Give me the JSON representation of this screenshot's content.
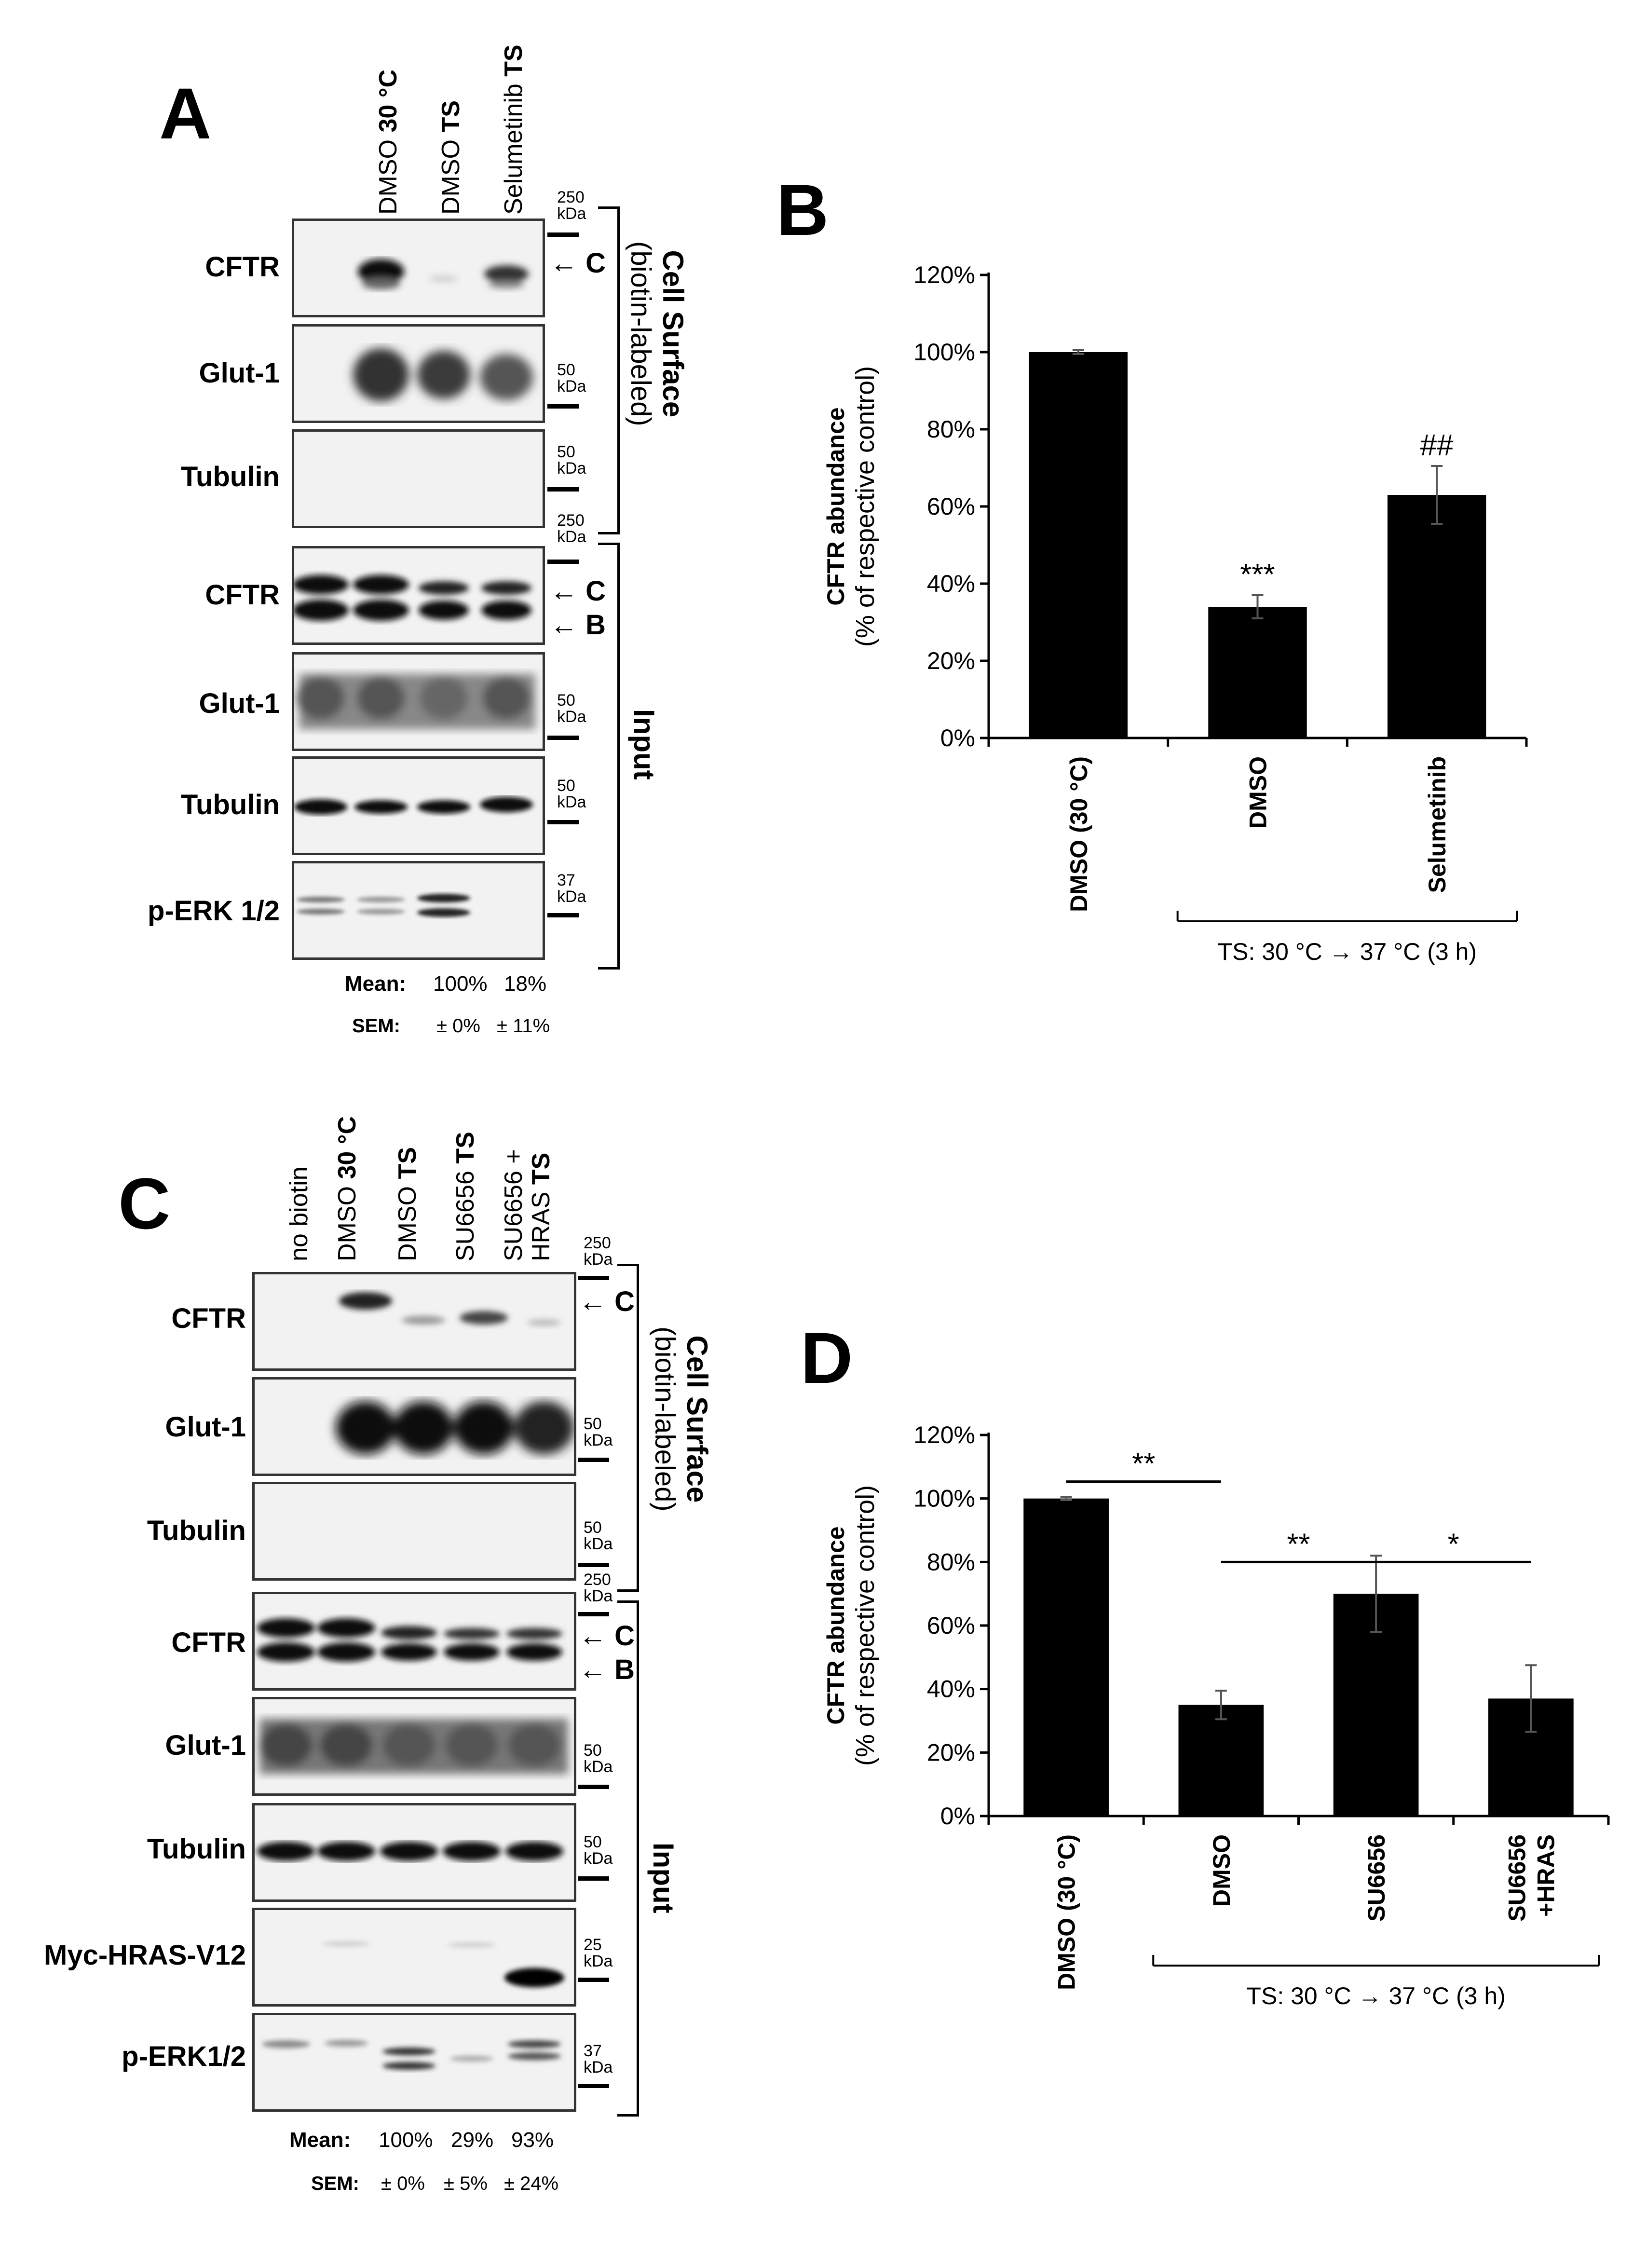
{
  "panels": {
    "A": {
      "letter": "A",
      "lanes": [
        {
          "pre": "DMSO ",
          "bold": "30 °C"
        },
        {
          "pre": "DMSO ",
          "bold": "TS"
        },
        {
          "pre": "Selumetinib ",
          "bold": "TS"
        }
      ],
      "rows": [
        "CFTR",
        "Glut-1",
        "Tubulin",
        "CFTR",
        "Glut-1",
        "Tubulin",
        "p-ERK 1/2"
      ],
      "markers": [
        "250\nkDa",
        "50\nkDa",
        "50\nkDa",
        "250\nkDa",
        "50\nkDa",
        "50\nkDa",
        "37\nkDa"
      ],
      "arrows": [
        "← C",
        "← C",
        "← B"
      ],
      "surface_label": {
        "title": "Cell Surface",
        "sub": "(biotin-labeled)"
      },
      "input_label": "Input",
      "mean_label": "Mean:",
      "mean_values": [
        "100%",
        "18%"
      ],
      "sem_label": "SEM:",
      "sem_values": [
        "± 0%",
        "± 11%"
      ]
    },
    "C": {
      "letter": "C",
      "lanes": [
        {
          "pre": "no biotin",
          "bold": ""
        },
        {
          "pre": "DMSO ",
          "bold": "30 °C"
        },
        {
          "pre": "DMSO ",
          "bold": "TS"
        },
        {
          "pre": "SU6656 ",
          "bold": "TS"
        },
        {
          "pre": "SU6656 +",
          "bold": ""
        },
        {
          "pre": "HRAS ",
          "bold": "TS"
        }
      ],
      "rows": [
        "CFTR",
        "Glut-1",
        "Tubulin",
        "CFTR",
        "Glut-1",
        "Tubulin",
        "Myc-HRAS-V12",
        "p-ERK1/2"
      ],
      "markers": [
        "250\nkDa",
        "50\nkDa",
        "50\nkDa",
        "250\nkDa",
        "50\nkDa",
        "50\nkDa",
        "25\nkDa",
        "37\nkDa"
      ],
      "arrows": [
        "← C",
        "← C",
        "← B"
      ],
      "surface_label": {
        "title": "Cell Surface",
        "sub": "(biotin-labeled)"
      },
      "input_label": "Input",
      "mean_label": "Mean:",
      "mean_values": [
        "100%",
        "29%",
        "93%"
      ],
      "sem_label": "SEM:",
      "sem_values": [
        "± 0%",
        "± 5%",
        "± 24%"
      ]
    },
    "B": {
      "letter": "B"
    },
    "D": {
      "letter": "D"
    }
  },
  "chart_data": [
    {
      "panel": "B",
      "type": "bar",
      "categories": [
        "DMSO (30 °C)",
        "DMSO",
        "Selumetinib"
      ],
      "values": [
        100,
        34,
        63
      ],
      "errors": [
        0.5,
        3,
        7.5
      ],
      "annotations": [
        "",
        "***",
        "##"
      ],
      "ylabel": "CFTR abundance",
      "ylabel2": "(% of respective control)",
      "ylim": [
        0,
        120
      ],
      "yticks": [
        "0%",
        "20%",
        "40%",
        "60%",
        "80%",
        "100%",
        "120%"
      ],
      "group_label": "TS: 30 °C → 37 °C (3 h)",
      "color": "#000000"
    },
    {
      "panel": "D",
      "type": "bar",
      "categories": [
        "DMSO (30 °C)",
        "DMSO",
        "SU6656",
        "SU6656\n+HRAS"
      ],
      "values": [
        100,
        35,
        70,
        37
      ],
      "errors": [
        0.5,
        4.5,
        12,
        10.5
      ],
      "comparisons": [
        {
          "from": 0,
          "to": 1,
          "label": "**"
        },
        {
          "from": 1,
          "to": 2,
          "label": "**"
        },
        {
          "from": 2,
          "to": 3,
          "label": "*"
        }
      ],
      "ylabel": "CFTR abundance",
      "ylabel2": "(% of respective control)",
      "ylim": [
        0,
        120
      ],
      "yticks": [
        "0%",
        "20%",
        "40%",
        "60%",
        "80%",
        "100%",
        "120%"
      ],
      "group_label": "TS: 30 °C → 37 °C (3 h)",
      "color": "#000000"
    }
  ]
}
